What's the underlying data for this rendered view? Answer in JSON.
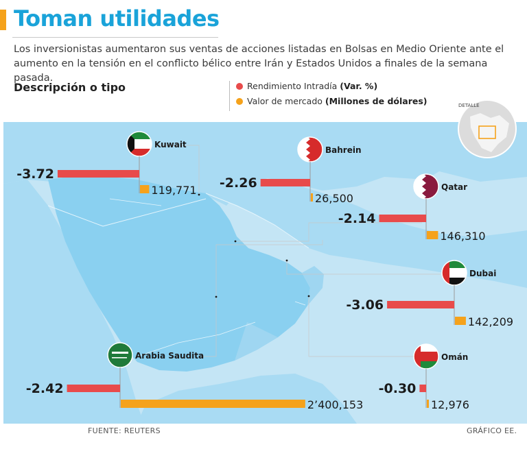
{
  "header": {
    "title": "Toman utilidades",
    "subtitle": "Los inversionistas aumentaron sus ventas de acciones listadas en Bolsas en Medio Oriente ante el aumento en la tensión en el conflicto bélico entre Irán y Estados Unidos a finales de la semana pasada.",
    "section_label": "Descripción o tipo"
  },
  "legend": {
    "items": [
      {
        "label": "Rendimiento Intradía",
        "bold": "(Var. %)",
        "color": "#e84b4b"
      },
      {
        "label": "Valor de mercado",
        "bold": "(Millones de dólares)",
        "color": "#f5a21b"
      }
    ]
  },
  "inset": {
    "label": "DETALLE"
  },
  "footer": {
    "source": "FUENTE: REUTERS",
    "credit": "GRÁFICO EE."
  },
  "colors": {
    "title": "#1aa3d9",
    "sea": "#c4e5f5",
    "land": "#a9dbf3",
    "arabia": "#8ad0f0",
    "rendimiento": "#e84b4b",
    "valor": "#f5a21b"
  },
  "chart_data": {
    "type": "bar",
    "categories": [
      "Kuwait",
      "Bahrein",
      "Qatar",
      "Dubai",
      "Arabia Saudita",
      "Omán"
    ],
    "series": [
      {
        "name": "Rendimiento Intradía (Var. %)",
        "values": [
          -3.72,
          -2.26,
          -2.14,
          -3.06,
          -2.42,
          -0.3
        ],
        "labels": [
          "-3.72",
          "-2.26",
          "-2.14",
          "-3.06",
          "-2.42",
          "-0.30"
        ]
      },
      {
        "name": "Valor de mercado (Millones de dólares)",
        "values": [
          119771,
          26500,
          146310,
          142209,
          2400153,
          12976
        ],
        "labels": [
          "119,771",
          "26,500",
          "146,310",
          "142,209",
          "2’400,153",
          "12,976"
        ]
      }
    ],
    "flag_icons": [
      "kuwait-flag-icon",
      "bahrain-flag-icon",
      "qatar-flag-icon",
      "uae-flag-icon",
      "saudi-flag-icon",
      "oman-flag-icon"
    ]
  }
}
